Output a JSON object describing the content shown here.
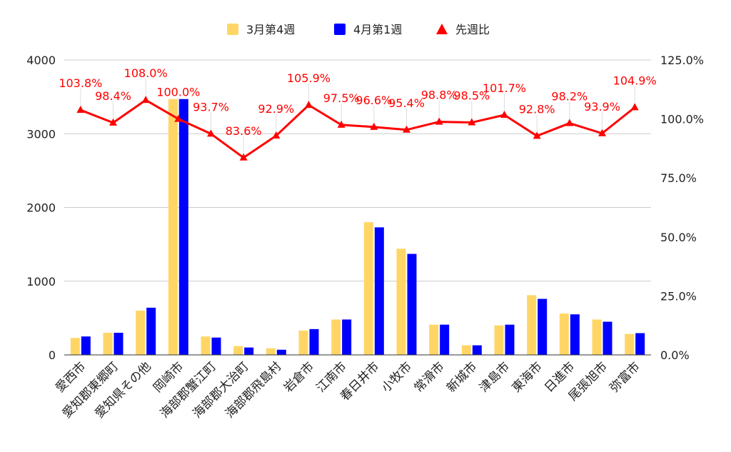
{
  "chart_data": {
    "type": "bar",
    "categories": [
      "愛西市",
      "愛知郡東郷町",
      "愛知県その他",
      "岡崎市",
      "海部郡蟹江町",
      "海部郡大治町",
      "海部郡飛島村",
      "岩倉市",
      "江南市",
      "春日井市",
      "小牧市",
      "常滑市",
      "新城市",
      "津島市",
      "東海市",
      "日進市",
      "尾張旭市",
      "弥富市"
    ],
    "series": [
      {
        "name": "3月第4週",
        "type": "bar",
        "axis": "left",
        "color": "#ffd666",
        "values": [
          230,
          300,
          600,
          3470,
          250,
          120,
          90,
          330,
          480,
          1800,
          1440,
          410,
          130,
          400,
          810,
          560,
          480,
          285
        ]
      },
      {
        "name": "4月第1週",
        "type": "bar",
        "axis": "left",
        "color": "#0000ff",
        "values": [
          250,
          300,
          640,
          3470,
          235,
          100,
          70,
          350,
          480,
          1730,
          1370,
          410,
          130,
          410,
          760,
          550,
          450,
          295
        ]
      },
      {
        "name": "先週比",
        "type": "line",
        "axis": "right",
        "color": "#ff0000",
        "values": [
          103.8,
          98.4,
          108.0,
          100.0,
          93.7,
          83.6,
          92.9,
          105.9,
          97.5,
          96.6,
          95.4,
          98.8,
          98.5,
          101.7,
          92.8,
          98.2,
          93.9,
          104.9
        ],
        "labels": [
          "103.8%",
          "98.4%",
          "108.0%",
          "100.0%",
          "93.7%",
          "83.6%",
          "92.9%",
          "105.9%",
          "97.5%",
          "96.6%",
          "95.4%",
          "98.8%",
          "98.5%",
          "101.7%",
          "92.8%",
          "98.2%",
          "93.9%",
          "104.9%"
        ]
      }
    ],
    "y_left": {
      "ylim": [
        0,
        4000
      ],
      "ticks": [
        "0",
        "1000",
        "2000",
        "3000",
        "4000"
      ],
      "tick_values": [
        0,
        1000,
        2000,
        3000,
        4000
      ]
    },
    "y_right": {
      "ylim": [
        0,
        125
      ],
      "ticks": [
        "0.0%",
        "25.0%",
        "50.0%",
        "75.0%",
        "100.0%",
        "125.0%"
      ],
      "tick_values": [
        0,
        25,
        50,
        75,
        100,
        125
      ]
    },
    "legend_position": "top-center",
    "grid": true
  }
}
